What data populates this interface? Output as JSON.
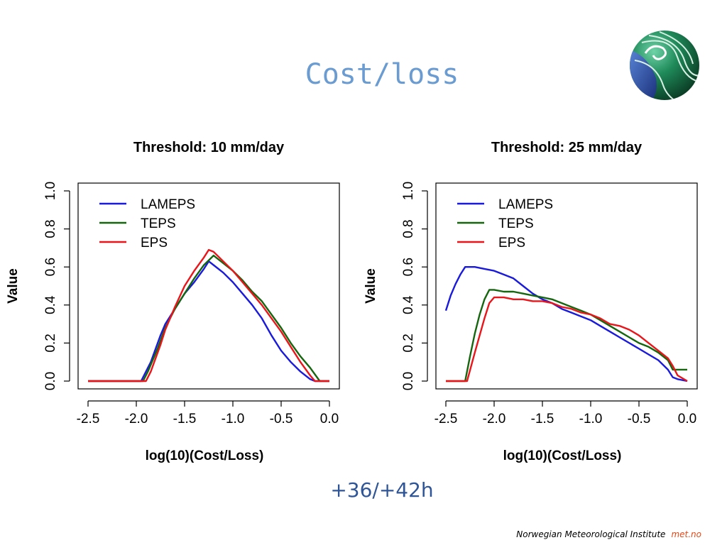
{
  "slide": {
    "title": "Cost/loss",
    "subtitle": "+36/+42h",
    "footer_institute": "Norwegian Meteorological Institute",
    "footer_brand": "met.no"
  },
  "colors": {
    "title": "#6a9bd1",
    "subtitle": "#2f5597",
    "brand": "#e04a1a",
    "LAMEPS": "#1a1adb",
    "TEPS": "#16660f",
    "EPS": "#e8161a"
  },
  "chart_data": [
    {
      "type": "line",
      "title": "Threshold: 10 mm/day",
      "xlabel": "log(10)(Cost/Loss)",
      "ylabel": "Value",
      "xlim": [
        -2.5,
        0.0
      ],
      "ylim": [
        0.0,
        1.0
      ],
      "xticks": [
        "-2.5",
        "-2.0",
        "-1.5",
        "-1.0",
        "-0.5",
        "0.0"
      ],
      "yticks": [
        "0.0",
        "0.2",
        "0.4",
        "0.6",
        "0.8",
        "1.0"
      ],
      "legend_position": "top-left",
      "grid": false,
      "series": [
        {
          "name": "LAMEPS",
          "color": "#1a1adb",
          "points": [
            [
              -2.5,
              0.0
            ],
            [
              -1.95,
              0.0
            ],
            [
              -1.9,
              0.05
            ],
            [
              -1.85,
              0.1
            ],
            [
              -1.8,
              0.17
            ],
            [
              -1.75,
              0.24
            ],
            [
              -1.7,
              0.3
            ],
            [
              -1.6,
              0.38
            ],
            [
              -1.5,
              0.46
            ],
            [
              -1.4,
              0.52
            ],
            [
              -1.3,
              0.59
            ],
            [
              -1.25,
              0.63
            ],
            [
              -1.2,
              0.61
            ],
            [
              -1.1,
              0.57
            ],
            [
              -1.0,
              0.52
            ],
            [
              -0.9,
              0.46
            ],
            [
              -0.8,
              0.4
            ],
            [
              -0.7,
              0.33
            ],
            [
              -0.6,
              0.24
            ],
            [
              -0.5,
              0.16
            ],
            [
              -0.4,
              0.1
            ],
            [
              -0.3,
              0.05
            ],
            [
              -0.2,
              0.01
            ],
            [
              -0.15,
              0.0
            ],
            [
              0.0,
              0.0
            ]
          ]
        },
        {
          "name": "TEPS",
          "color": "#16660f",
          "points": [
            [
              -2.5,
              0.0
            ],
            [
              -1.93,
              0.0
            ],
            [
              -1.88,
              0.05
            ],
            [
              -1.83,
              0.11
            ],
            [
              -1.78,
              0.17
            ],
            [
              -1.73,
              0.24
            ],
            [
              -1.7,
              0.28
            ],
            [
              -1.6,
              0.38
            ],
            [
              -1.5,
              0.46
            ],
            [
              -1.4,
              0.54
            ],
            [
              -1.3,
              0.61
            ],
            [
              -1.2,
              0.66
            ],
            [
              -1.1,
              0.62
            ],
            [
              -1.0,
              0.58
            ],
            [
              -0.9,
              0.53
            ],
            [
              -0.8,
              0.47
            ],
            [
              -0.7,
              0.42
            ],
            [
              -0.6,
              0.35
            ],
            [
              -0.5,
              0.28
            ],
            [
              -0.4,
              0.2
            ],
            [
              -0.3,
              0.13
            ],
            [
              -0.2,
              0.07
            ],
            [
              -0.1,
              0.0
            ],
            [
              0.0,
              0.0
            ]
          ]
        },
        {
          "name": "EPS",
          "color": "#e8161a",
          "points": [
            [
              -2.5,
              0.0
            ],
            [
              -1.9,
              0.0
            ],
            [
              -1.85,
              0.05
            ],
            [
              -1.8,
              0.12
            ],
            [
              -1.75,
              0.19
            ],
            [
              -1.7,
              0.27
            ],
            [
              -1.6,
              0.39
            ],
            [
              -1.5,
              0.5
            ],
            [
              -1.4,
              0.58
            ],
            [
              -1.3,
              0.65
            ],
            [
              -1.25,
              0.69
            ],
            [
              -1.2,
              0.68
            ],
            [
              -1.1,
              0.63
            ],
            [
              -1.0,
              0.58
            ],
            [
              -0.9,
              0.52
            ],
            [
              -0.8,
              0.46
            ],
            [
              -0.7,
              0.4
            ],
            [
              -0.6,
              0.33
            ],
            [
              -0.5,
              0.26
            ],
            [
              -0.4,
              0.18
            ],
            [
              -0.3,
              0.1
            ],
            [
              -0.2,
              0.03
            ],
            [
              -0.15,
              0.0
            ],
            [
              0.0,
              0.0
            ]
          ]
        }
      ]
    },
    {
      "type": "line",
      "title": "Threshold: 25 mm/day",
      "xlabel": "log(10)(Cost/Loss)",
      "ylabel": "Value",
      "xlim": [
        -2.5,
        0.0
      ],
      "ylim": [
        0.0,
        1.0
      ],
      "xticks": [
        "-2.5",
        "-2.0",
        "-1.5",
        "-1.0",
        "-0.5",
        "0.0"
      ],
      "yticks": [
        "0.0",
        "0.2",
        "0.4",
        "0.6",
        "0.8",
        "1.0"
      ],
      "legend_position": "top-left",
      "grid": false,
      "series": [
        {
          "name": "LAMEPS",
          "color": "#1a1adb",
          "points": [
            [
              -2.5,
              0.37
            ],
            [
              -2.45,
              0.45
            ],
            [
              -2.4,
              0.51
            ],
            [
              -2.35,
              0.56
            ],
            [
              -2.3,
              0.6
            ],
            [
              -2.2,
              0.6
            ],
            [
              -2.1,
              0.59
            ],
            [
              -2.0,
              0.58
            ],
            [
              -1.9,
              0.56
            ],
            [
              -1.8,
              0.54
            ],
            [
              -1.7,
              0.5
            ],
            [
              -1.6,
              0.46
            ],
            [
              -1.5,
              0.43
            ],
            [
              -1.4,
              0.41
            ],
            [
              -1.3,
              0.38
            ],
            [
              -1.2,
              0.36
            ],
            [
              -1.1,
              0.34
            ],
            [
              -1.0,
              0.32
            ],
            [
              -0.9,
              0.29
            ],
            [
              -0.8,
              0.26
            ],
            [
              -0.7,
              0.23
            ],
            [
              -0.6,
              0.2
            ],
            [
              -0.5,
              0.17
            ],
            [
              -0.4,
              0.14
            ],
            [
              -0.3,
              0.11
            ],
            [
              -0.2,
              0.06
            ],
            [
              -0.15,
              0.02
            ],
            [
              -0.1,
              0.01
            ],
            [
              0.0,
              0.0
            ]
          ]
        },
        {
          "name": "TEPS",
          "color": "#16660f",
          "points": [
            [
              -2.5,
              0.0
            ],
            [
              -2.3,
              0.0
            ],
            [
              -2.25,
              0.13
            ],
            [
              -2.2,
              0.25
            ],
            [
              -2.15,
              0.35
            ],
            [
              -2.1,
              0.43
            ],
            [
              -2.05,
              0.48
            ],
            [
              -2.0,
              0.48
            ],
            [
              -1.9,
              0.47
            ],
            [
              -1.8,
              0.47
            ],
            [
              -1.7,
              0.46
            ],
            [
              -1.6,
              0.45
            ],
            [
              -1.5,
              0.44
            ],
            [
              -1.4,
              0.43
            ],
            [
              -1.3,
              0.41
            ],
            [
              -1.2,
              0.39
            ],
            [
              -1.1,
              0.37
            ],
            [
              -1.0,
              0.35
            ],
            [
              -0.9,
              0.32
            ],
            [
              -0.8,
              0.29
            ],
            [
              -0.7,
              0.26
            ],
            [
              -0.6,
              0.23
            ],
            [
              -0.5,
              0.2
            ],
            [
              -0.4,
              0.18
            ],
            [
              -0.3,
              0.15
            ],
            [
              -0.2,
              0.11
            ],
            [
              -0.15,
              0.06
            ],
            [
              -0.1,
              0.06
            ],
            [
              0.0,
              0.06
            ]
          ]
        },
        {
          "name": "EPS",
          "color": "#e8161a",
          "points": [
            [
              -2.5,
              0.0
            ],
            [
              -2.28,
              0.0
            ],
            [
              -2.2,
              0.15
            ],
            [
              -2.1,
              0.33
            ],
            [
              -2.05,
              0.41
            ],
            [
              -2.0,
              0.44
            ],
            [
              -1.9,
              0.44
            ],
            [
              -1.8,
              0.43
            ],
            [
              -1.7,
              0.43
            ],
            [
              -1.6,
              0.42
            ],
            [
              -1.5,
              0.42
            ],
            [
              -1.4,
              0.41
            ],
            [
              -1.3,
              0.39
            ],
            [
              -1.2,
              0.38
            ],
            [
              -1.1,
              0.36
            ],
            [
              -1.0,
              0.35
            ],
            [
              -0.9,
              0.33
            ],
            [
              -0.8,
              0.3
            ],
            [
              -0.7,
              0.29
            ],
            [
              -0.6,
              0.27
            ],
            [
              -0.5,
              0.24
            ],
            [
              -0.4,
              0.2
            ],
            [
              -0.3,
              0.16
            ],
            [
              -0.2,
              0.12
            ],
            [
              -0.15,
              0.08
            ],
            [
              -0.1,
              0.03
            ],
            [
              0.0,
              0.0
            ]
          ]
        }
      ]
    }
  ]
}
